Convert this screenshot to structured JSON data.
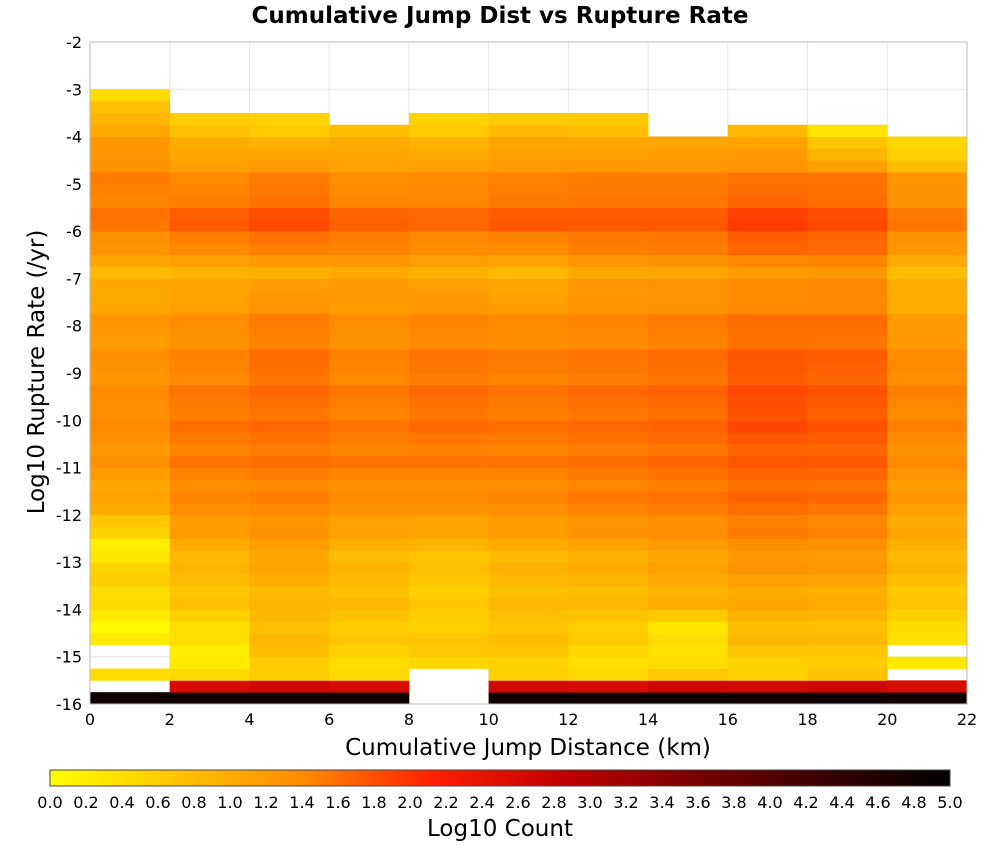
{
  "chart_data": {
    "type": "heatmap",
    "title": "Cumulative Jump Dist vs Rupture Rate",
    "xlabel": "Cumulative Jump Distance (km)",
    "ylabel": "Log10 Rupture Rate (/yr)",
    "xlim": [
      0,
      22
    ],
    "ylim": [
      -16,
      -2
    ],
    "x_ticks": [
      0,
      2,
      4,
      6,
      8,
      10,
      12,
      14,
      16,
      18,
      20,
      22
    ],
    "y_ticks": [
      -2,
      -3,
      -4,
      -5,
      -6,
      -7,
      -8,
      -9,
      -10,
      -11,
      -12,
      -13,
      -14,
      -15,
      -16
    ],
    "x_bin_width_km": 2,
    "y_bin_height": 0.25,
    "grid": true,
    "colorbar": {
      "label": "Log10 Count",
      "range": [
        0.0,
        5.0
      ],
      "ticks": [
        "0.0",
        "0.2",
        "0.4",
        "0.6",
        "0.8",
        "1.0",
        "1.2",
        "1.4",
        "1.6",
        "1.8",
        "2.0",
        "2.2",
        "2.4",
        "2.6",
        "2.8",
        "3.0",
        "3.2",
        "3.4",
        "3.6",
        "3.8",
        "4.0",
        "4.2",
        "4.4",
        "4.6",
        "4.8",
        "5.0"
      ],
      "colors": [
        "#ffff00",
        "#ffc400",
        "#ff8800",
        "#ff1e00",
        "#c00000",
        "#7a0000",
        "#3a0000",
        "#000000"
      ]
    },
    "columns": [
      {
        "x": [
          0,
          2
        ],
        "y_min": -16.0,
        "y_max": -3.0,
        "gaps": [
          [
            -15.75,
            -15.5
          ],
          [
            -15.25,
            -14.75
          ]
        ],
        "profile": [
          [
            -16,
            4.8
          ],
          [
            -15.5,
            0.35
          ],
          [
            -14.5,
            0.15
          ],
          [
            -13.5,
            0.6
          ],
          [
            -12.75,
            0.2
          ],
          [
            -12,
            1.0
          ],
          [
            -11,
            1.25
          ],
          [
            -10,
            1.4
          ],
          [
            -9,
            1.3
          ],
          [
            -8,
            1.2
          ],
          [
            -7,
            0.9
          ],
          [
            -6,
            1.55
          ],
          [
            -5,
            1.45
          ],
          [
            -4,
            1.1
          ],
          [
            -3.5,
            0.7
          ],
          [
            -3,
            0.3
          ]
        ]
      },
      {
        "x": [
          2,
          4
        ],
        "y_min": -16.0,
        "y_max": -3.5,
        "gaps": [],
        "profile": [
          [
            -16,
            4.8
          ],
          [
            -15.5,
            0.4
          ],
          [
            -15,
            0.2
          ],
          [
            -14,
            0.7
          ],
          [
            -13,
            0.9
          ],
          [
            -12,
            1.35
          ],
          [
            -11,
            1.5
          ],
          [
            -10,
            1.55
          ],
          [
            -9,
            1.45
          ],
          [
            -8,
            1.3
          ],
          [
            -7,
            0.95
          ],
          [
            -6,
            1.75
          ],
          [
            -5,
            1.35
          ],
          [
            -4,
            0.8
          ],
          [
            -3.5,
            0.4
          ]
        ]
      },
      {
        "x": [
          4,
          6
        ],
        "y_min": -16.0,
        "y_max": -3.5,
        "gaps": [],
        "profile": [
          [
            -16,
            4.8
          ],
          [
            -15.5,
            0.55
          ],
          [
            -15,
            0.8
          ],
          [
            -14,
            0.85
          ],
          [
            -13,
            1.1
          ],
          [
            -12,
            1.4
          ],
          [
            -11,
            1.55
          ],
          [
            -10,
            1.6
          ],
          [
            -9,
            1.6
          ],
          [
            -8,
            1.45
          ],
          [
            -7,
            1.0
          ],
          [
            -6,
            1.85
          ],
          [
            -5,
            1.45
          ],
          [
            -4,
            0.7
          ],
          [
            -3.5,
            0.4
          ]
        ]
      },
      {
        "x": [
          6,
          8
        ],
        "y_min": -16.0,
        "y_max": -3.75,
        "gaps": [],
        "profile": [
          [
            -16,
            4.8
          ],
          [
            -15.5,
            0.4
          ],
          [
            -15,
            0.55
          ],
          [
            -14,
            0.8
          ],
          [
            -13,
            0.85
          ],
          [
            -12,
            1.3
          ],
          [
            -11,
            1.5
          ],
          [
            -10,
            1.5
          ],
          [
            -9,
            1.45
          ],
          [
            -8,
            1.3
          ],
          [
            -7,
            1.1
          ],
          [
            -6,
            1.7
          ],
          [
            -5,
            1.3
          ],
          [
            -4,
            0.85
          ],
          [
            -3.75,
            0.5
          ]
        ]
      },
      {
        "x": [
          8,
          10
        ],
        "y_min": -15.25,
        "y_max": -3.5,
        "gaps": [],
        "profile": [
          [
            -15.25,
            0.55
          ],
          [
            -15,
            0.65
          ],
          [
            -14,
            0.6
          ],
          [
            -13,
            0.75
          ],
          [
            -12,
            1.3
          ],
          [
            -11,
            1.5
          ],
          [
            -10,
            1.6
          ],
          [
            -9,
            1.55
          ],
          [
            -8,
            1.4
          ],
          [
            -7,
            1.0
          ],
          [
            -6,
            1.65
          ],
          [
            -5,
            1.35
          ],
          [
            -4,
            0.7
          ],
          [
            -3.5,
            0.35
          ]
        ]
      },
      {
        "x": [
          10,
          12
        ],
        "y_min": -16.0,
        "y_max": -3.5,
        "gaps": [],
        "profile": [
          [
            -16,
            4.8
          ],
          [
            -15.5,
            0.5
          ],
          [
            -15,
            0.7
          ],
          [
            -14,
            0.8
          ],
          [
            -13,
            0.9
          ],
          [
            -12,
            1.35
          ],
          [
            -11,
            1.5
          ],
          [
            -10,
            1.55
          ],
          [
            -9,
            1.5
          ],
          [
            -8,
            1.35
          ],
          [
            -7,
            0.9
          ],
          [
            -6,
            1.75
          ],
          [
            -5,
            1.4
          ],
          [
            -4,
            0.9
          ],
          [
            -3.5,
            0.35
          ]
        ]
      },
      {
        "x": [
          12,
          14
        ],
        "y_min": -16.0,
        "y_max": -3.5,
        "gaps": [],
        "profile": [
          [
            -16,
            4.8
          ],
          [
            -15.5,
            0.4
          ],
          [
            -15,
            0.5
          ],
          [
            -14,
            0.8
          ],
          [
            -13,
            1.0
          ],
          [
            -12,
            1.45
          ],
          [
            -11,
            1.55
          ],
          [
            -10,
            1.6
          ],
          [
            -9,
            1.55
          ],
          [
            -8,
            1.4
          ],
          [
            -7,
            1.1
          ],
          [
            -6,
            1.75
          ],
          [
            -5,
            1.45
          ],
          [
            -4,
            0.85
          ],
          [
            -3.5,
            0.45
          ]
        ]
      },
      {
        "x": [
          14,
          16
        ],
        "y_min": -16.0,
        "y_max": -4.0,
        "gaps": [],
        "profile": [
          [
            -16,
            4.8
          ],
          [
            -15.5,
            0.6
          ],
          [
            -15,
            0.35
          ],
          [
            -14.5,
            0.35
          ],
          [
            -14,
            0.95
          ],
          [
            -13,
            1.1
          ],
          [
            -12,
            1.5
          ],
          [
            -11,
            1.6
          ],
          [
            -10,
            1.65
          ],
          [
            -9,
            1.6
          ],
          [
            -8,
            1.45
          ],
          [
            -7,
            1.15
          ],
          [
            -6,
            1.75
          ],
          [
            -5,
            1.45
          ],
          [
            -4,
            0.9
          ]
        ]
      },
      {
        "x": [
          16,
          18
        ],
        "y_min": -16.0,
        "y_max": -3.75,
        "gaps": [],
        "profile": [
          [
            -16,
            4.8
          ],
          [
            -15.5,
            0.5
          ],
          [
            -15,
            0.7
          ],
          [
            -14,
            1.0
          ],
          [
            -13,
            1.3
          ],
          [
            -12,
            1.6
          ],
          [
            -11,
            1.7
          ],
          [
            -10,
            1.85
          ],
          [
            -9,
            1.75
          ],
          [
            -8,
            1.55
          ],
          [
            -7,
            1.25
          ],
          [
            -6,
            1.95
          ],
          [
            -5,
            1.5
          ],
          [
            -4,
            0.9
          ],
          [
            -3.75,
            0.45
          ]
        ]
      },
      {
        "x": [
          18,
          20
        ],
        "y_min": -16.0,
        "y_max": -3.75,
        "gaps": [],
        "profile": [
          [
            -16,
            4.8
          ],
          [
            -15.5,
            0.65
          ],
          [
            -15,
            0.7
          ],
          [
            -14,
            0.95
          ],
          [
            -13,
            1.25
          ],
          [
            -12,
            1.55
          ],
          [
            -11,
            1.7
          ],
          [
            -10,
            1.75
          ],
          [
            -9,
            1.7
          ],
          [
            -8,
            1.55
          ],
          [
            -7,
            1.3
          ],
          [
            -6,
            1.85
          ],
          [
            -5,
            1.5
          ],
          [
            -4.5,
            0.9
          ],
          [
            -4,
            0.4
          ],
          [
            -3.75,
            0.35
          ]
        ]
      },
      {
        "x": [
          20,
          22
        ],
        "y_min": -16.0,
        "y_max": -4.0,
        "gaps": [
          [
            -15.5,
            -15.25
          ],
          [
            -15.0,
            -14.75
          ]
        ],
        "profile": [
          [
            -16,
            4.8
          ],
          [
            -15.5,
            0.35
          ],
          [
            -14.75,
            0.3
          ],
          [
            -14.5,
            0.5
          ],
          [
            -14,
            0.65
          ],
          [
            -13,
            0.9
          ],
          [
            -12,
            1.15
          ],
          [
            -11,
            1.35
          ],
          [
            -10,
            1.45
          ],
          [
            -9,
            1.4
          ],
          [
            -8,
            1.15
          ],
          [
            -7,
            0.85
          ],
          [
            -6,
            1.55
          ],
          [
            -5,
            1.2
          ],
          [
            -4.5,
            0.55
          ],
          [
            -4,
            0.3
          ]
        ]
      }
    ]
  }
}
